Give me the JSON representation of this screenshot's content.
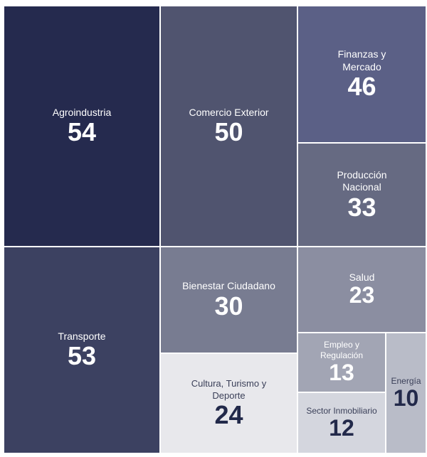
{
  "chart_data": {
    "type": "treemap",
    "items": [
      {
        "label": "Agroindustria",
        "value": 54,
        "color": "#252a4e"
      },
      {
        "label": "Transporte",
        "value": 53,
        "color": "#3c4161"
      },
      {
        "label": "Comercio Exterior",
        "value": 50,
        "color": "#50546f"
      },
      {
        "label": "Finanzas y Mercado",
        "value": 46,
        "color": "#5b6086"
      },
      {
        "label": "Producción Nacional",
        "value": 33,
        "color": "#666a82"
      },
      {
        "label": "Bienestar Ciudadano",
        "value": 30,
        "color": "#787c91"
      },
      {
        "label": "Cultura, Turismo y Deporte",
        "value": 24,
        "color": "#e8e8ec"
      },
      {
        "label": "Salud",
        "value": 23,
        "color": "#8b8ea1"
      },
      {
        "label": "Empleo y Regulación",
        "value": 13,
        "color": "#a2a5b4"
      },
      {
        "label": "Sector Inmobiliario",
        "value": 12,
        "color": "#d4d6de"
      },
      {
        "label": "Energía",
        "value": 10,
        "color": "#b9bcc8"
      }
    ]
  }
}
